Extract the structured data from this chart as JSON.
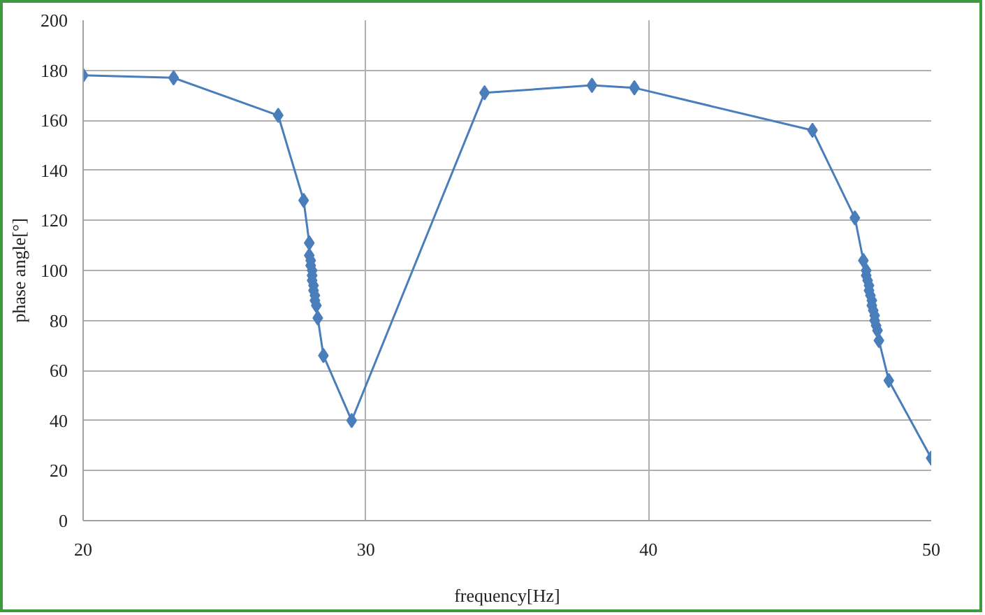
{
  "chart_data": {
    "type": "line",
    "xlabel": "frequency[Hz]",
    "ylabel": "phase angle[°]",
    "x": [
      20,
      23.2,
      26.9,
      27.8,
      28.0,
      28.0,
      28.05,
      28.05,
      28.1,
      28.1,
      28.1,
      28.15,
      28.15,
      28.2,
      28.2,
      28.25,
      28.3,
      28.5,
      29.5,
      34.2,
      38.0,
      39.5,
      45.8,
      47.3,
      47.6,
      47.7,
      47.7,
      47.75,
      47.8,
      47.8,
      47.85,
      47.9,
      47.9,
      47.95,
      48.0,
      48.0,
      48.05,
      48.1,
      48.15,
      48.5,
      50
    ],
    "series": [
      {
        "color": "#4a7ebb",
        "values": [
          178,
          177,
          162,
          128,
          111,
          106,
          104,
          102,
          100,
          98,
          96,
          94,
          92,
          90,
          88,
          86,
          81,
          66,
          40,
          171,
          174,
          173,
          156,
          121,
          104,
          100,
          98,
          96,
          94,
          92,
          90,
          88,
          86,
          84,
          82,
          80,
          78,
          76,
          72,
          56,
          25
        ]
      }
    ],
    "xlim": [
      20,
      50
    ],
    "xticks": [
      20,
      30,
      40,
      50
    ],
    "ylim": [
      0,
      200
    ],
    "yticks": [
      0,
      20,
      40,
      60,
      80,
      100,
      120,
      140,
      160,
      180,
      200
    ],
    "grid": true,
    "marker": "diamond",
    "line_style": "solid"
  }
}
